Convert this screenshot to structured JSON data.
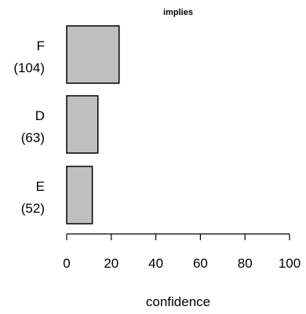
{
  "chart_data": {
    "type": "bar",
    "orientation": "horizontal",
    "title": "implies",
    "xlabel": "confidence",
    "ylabel": "",
    "categories": [
      "F",
      "D",
      "E"
    ],
    "category_counts": [
      "(104)",
      "(63)",
      "(52)"
    ],
    "values": [
      23.5,
      14,
      11.5
    ],
    "xlim": [
      0,
      100
    ],
    "xticks": [
      0,
      20,
      40,
      60,
      80,
      100
    ],
    "grid": false,
    "bar_color": "#c0c0c0"
  }
}
